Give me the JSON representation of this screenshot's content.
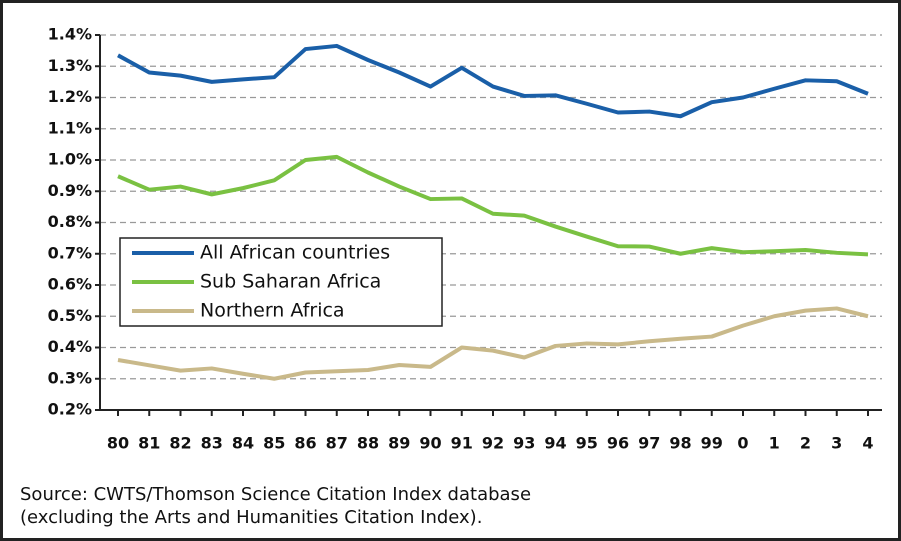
{
  "chart_data": {
    "type": "line",
    "categories": [
      "80",
      "81",
      "82",
      "83",
      "84",
      "85",
      "86",
      "87",
      "88",
      "89",
      "90",
      "91",
      "92",
      "93",
      "94",
      "95",
      "96",
      "97",
      "98",
      "99",
      "0",
      "1",
      "2",
      "3",
      "4"
    ],
    "series": [
      {
        "name": "All African countries",
        "color": "#1a5fa8",
        "values": [
          1.335,
          1.28,
          1.27,
          1.25,
          1.258,
          1.265,
          1.355,
          1.365,
          1.32,
          1.28,
          1.235,
          1.295,
          1.235,
          1.205,
          1.207,
          1.18,
          1.152,
          1.155,
          1.14,
          1.185,
          1.2,
          1.228,
          1.255,
          1.252,
          1.212
        ]
      },
      {
        "name": "Sub Saharan Africa",
        "color": "#7ac142",
        "values": [
          0.948,
          0.905,
          0.915,
          0.89,
          0.91,
          0.935,
          1.0,
          1.01,
          0.96,
          0.915,
          0.875,
          0.877,
          0.828,
          0.822,
          0.787,
          0.755,
          0.724,
          0.723,
          0.7,
          0.718,
          0.705,
          0.708,
          0.712,
          0.703,
          0.698
        ]
      },
      {
        "name": "Northern Africa",
        "color": "#c9b98a",
        "values": [
          0.36,
          0.343,
          0.326,
          0.333,
          0.316,
          0.3,
          0.32,
          0.324,
          0.328,
          0.344,
          0.338,
          0.4,
          0.39,
          0.368,
          0.405,
          0.413,
          0.41,
          0.42,
          0.428,
          0.435,
          0.47,
          0.5,
          0.518,
          0.525,
          0.5
        ]
      }
    ],
    "ylim": [
      0.2,
      1.4
    ],
    "yticks": [
      {
        "value": 0.2,
        "label": "0.2%"
      },
      {
        "value": 0.3,
        "label": "0.3%"
      },
      {
        "value": 0.4,
        "label": "0.4%"
      },
      {
        "value": 0.5,
        "label": "0.5%"
      },
      {
        "value": 0.6,
        "label": "0.6%"
      },
      {
        "value": 0.7,
        "label": "0.7%"
      },
      {
        "value": 0.8,
        "label": "0.8%"
      },
      {
        "value": 0.9,
        "label": "0.9%"
      },
      {
        "value": 1.0,
        "label": "1.0%"
      },
      {
        "value": 1.1,
        "label": "1.1%"
      },
      {
        "value": 1.2,
        "label": "1.2%"
      },
      {
        "value": 1.3,
        "label": "1.3%"
      },
      {
        "value": 1.4,
        "label": "1.4%"
      }
    ],
    "grid": true,
    "source": [
      "Source: CWTS/Thomson Science Citation Index database",
      "(excluding the Arts and Humanities Citation Index)."
    ]
  }
}
